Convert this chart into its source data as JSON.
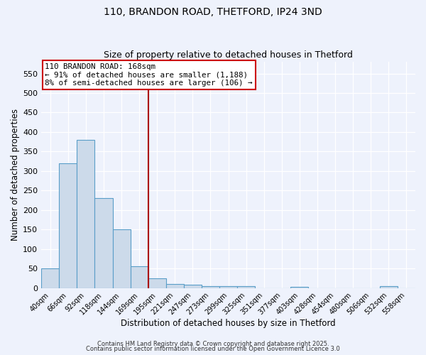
{
  "title1": "110, BRANDON ROAD, THETFORD, IP24 3ND",
  "title2": "Size of property relative to detached houses in Thetford",
  "xlabel": "Distribution of detached houses by size in Thetford",
  "ylabel": "Number of detached properties",
  "footer1": "Contains HM Land Registry data © Crown copyright and database right 2025.",
  "footer2": "Contains public sector information licensed under the Open Government Licence 3.0",
  "bin_labels": [
    "40sqm",
    "66sqm",
    "92sqm",
    "118sqm",
    "144sqm",
    "169sqm",
    "195sqm",
    "221sqm",
    "247sqm",
    "273sqm",
    "299sqm",
    "325sqm",
    "351sqm",
    "377sqm",
    "403sqm",
    "428sqm",
    "454sqm",
    "480sqm",
    "506sqm",
    "532sqm",
    "558sqm"
  ],
  "bar_values": [
    50,
    320,
    380,
    230,
    150,
    55,
    25,
    10,
    8,
    4,
    5,
    5,
    0,
    0,
    3,
    0,
    0,
    0,
    0,
    5,
    0
  ],
  "bar_color": "#ccdaea",
  "bar_edge_color": "#5a9ec8",
  "vline_color": "#aa0000",
  "annotation_line1": "110 BRANDON ROAD: 168sqm",
  "annotation_line2": "← 91% of detached houses are smaller (1,188)",
  "annotation_line3": "8% of semi-detached houses are larger (106) →",
  "annotation_box_color": "#cc0000",
  "ylim": [
    0,
    580
  ],
  "yticks": [
    0,
    50,
    100,
    150,
    200,
    250,
    300,
    350,
    400,
    450,
    500,
    550
  ],
  "background_color": "#eef2fc",
  "grid_color": "#ffffff",
  "title_fontsize": 10,
  "subtitle_fontsize": 9
}
